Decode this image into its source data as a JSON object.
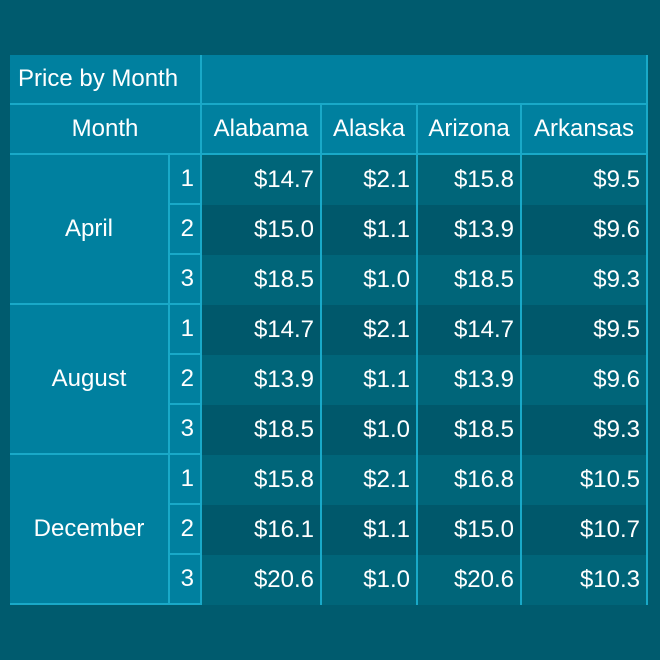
{
  "chart_data": {
    "type": "table",
    "title": "Price by Month",
    "row_header": "Month",
    "columns": [
      "Alabama",
      "Alaska",
      "Arizona",
      "Arkansas"
    ],
    "groups": [
      {
        "month": "April",
        "rows": [
          {
            "sub": "1",
            "values": [
              "$14.7",
              "$2.1",
              "$15.8",
              "$9.5"
            ]
          },
          {
            "sub": "2",
            "values": [
              "$15.0",
              "$1.1",
              "$13.9",
              "$9.6"
            ]
          },
          {
            "sub": "3",
            "values": [
              "$18.5",
              "$1.0",
              "$18.5",
              "$9.3"
            ]
          }
        ]
      },
      {
        "month": "August",
        "rows": [
          {
            "sub": "1",
            "values": [
              "$14.7",
              "$2.1",
              "$14.7",
              "$9.5"
            ]
          },
          {
            "sub": "2",
            "values": [
              "$13.9",
              "$1.1",
              "$13.9",
              "$9.6"
            ]
          },
          {
            "sub": "3",
            "values": [
              "$18.5",
              "$1.0",
              "$18.5",
              "$9.3"
            ]
          }
        ]
      },
      {
        "month": "December",
        "rows": [
          {
            "sub": "1",
            "values": [
              "$15.8",
              "$2.1",
              "$16.8",
              "$10.5"
            ]
          },
          {
            "sub": "2",
            "values": [
              "$16.1",
              "$1.1",
              "$15.0",
              "$10.7"
            ]
          },
          {
            "sub": "3",
            "values": [
              "$20.6",
              "$1.0",
              "$20.6",
              "$10.3"
            ]
          }
        ]
      }
    ]
  }
}
